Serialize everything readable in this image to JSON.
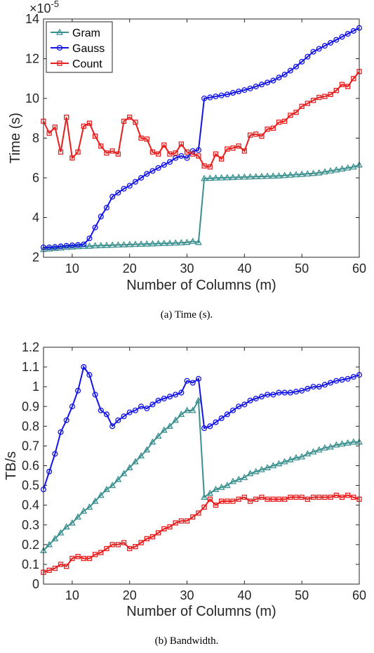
{
  "colors": {
    "gram": "#3a8f8f",
    "gauss": "#1414e6",
    "count": "#e61e1e",
    "axis": "#262626"
  },
  "chart_data": [
    {
      "type": "line",
      "caption": "(a) Time (s).",
      "xlabel": "Number of Columns (m)",
      "ylabel": "Time (s)",
      "exponent_label": "×10",
      "exponent_power": "-5",
      "xlim": [
        5,
        60
      ],
      "ylim": [
        2,
        14
      ],
      "xticks": [
        10,
        20,
        30,
        40,
        50,
        60
      ],
      "yticks": [
        2,
        4,
        6,
        8,
        10,
        12,
        14
      ],
      "legend": "top-left",
      "x": [
        5,
        6,
        7,
        8,
        9,
        10,
        11,
        12,
        13,
        14,
        15,
        16,
        17,
        18,
        19,
        20,
        21,
        22,
        23,
        24,
        25,
        26,
        27,
        28,
        29,
        30,
        31,
        32,
        33,
        34,
        35,
        36,
        37,
        38,
        39,
        40,
        41,
        42,
        43,
        44,
        45,
        46,
        47,
        48,
        49,
        50,
        51,
        52,
        53,
        54,
        55,
        56,
        57,
        58,
        59,
        60
      ],
      "series": [
        {
          "name": "Gram",
          "marker": "triangle",
          "color": "#3a8f8f",
          "values": [
            2.4,
            2.42,
            2.45,
            2.47,
            2.5,
            2.52,
            2.54,
            2.55,
            2.56,
            2.58,
            2.59,
            2.6,
            2.61,
            2.62,
            2.63,
            2.64,
            2.65,
            2.66,
            2.67,
            2.68,
            2.69,
            2.7,
            2.71,
            2.72,
            2.73,
            2.75,
            2.8,
            2.75,
            5.97,
            5.98,
            5.99,
            6.0,
            6.01,
            6.02,
            6.03,
            6.04,
            6.05,
            6.06,
            6.07,
            6.08,
            6.09,
            6.1,
            6.12,
            6.14,
            6.16,
            6.18,
            6.2,
            6.22,
            6.25,
            6.3,
            6.35,
            6.4,
            6.45,
            6.5,
            6.55,
            6.65
          ]
        },
        {
          "name": "Gauss",
          "marker": "circle",
          "color": "#1414e6",
          "values": [
            2.5,
            2.5,
            2.52,
            2.55,
            2.58,
            2.6,
            2.62,
            2.65,
            2.95,
            3.5,
            4.05,
            4.5,
            5.05,
            5.25,
            5.45,
            5.6,
            5.8,
            6.0,
            6.2,
            6.35,
            6.5,
            6.65,
            6.8,
            7.0,
            7.1,
            7.0,
            7.35,
            7.4,
            10.0,
            10.05,
            10.1,
            10.15,
            10.2,
            10.28,
            10.35,
            10.42,
            10.5,
            10.6,
            10.7,
            10.8,
            10.9,
            11.05,
            11.2,
            11.4,
            11.6,
            11.85,
            12.1,
            12.35,
            12.5,
            12.65,
            12.8,
            12.95,
            13.1,
            13.25,
            13.4,
            13.55
          ]
        },
        {
          "name": "Count",
          "marker": "square",
          "color": "#e61e1e",
          "values": [
            8.85,
            8.25,
            8.55,
            7.3,
            9.05,
            7.0,
            7.3,
            8.6,
            8.75,
            8.1,
            7.6,
            7.25,
            7.35,
            7.2,
            8.85,
            9.05,
            8.8,
            8.0,
            7.95,
            7.3,
            7.2,
            7.65,
            7.2,
            7.25,
            7.7,
            7.3,
            7.2,
            7.1,
            6.6,
            6.55,
            7.2,
            6.95,
            7.45,
            7.5,
            7.6,
            7.35,
            8.15,
            8.2,
            8.1,
            8.45,
            8.5,
            8.8,
            8.85,
            9.15,
            9.3,
            9.6,
            9.75,
            9.9,
            10.05,
            10.1,
            10.2,
            10.4,
            10.7,
            10.6,
            11.0,
            11.35
          ]
        }
      ]
    },
    {
      "type": "line",
      "caption": "(b) Bandwidth.",
      "xlabel": "Number of Columns (m)",
      "ylabel": "TB/s",
      "xlim": [
        5,
        60
      ],
      "ylim": [
        0,
        1.2
      ],
      "xticks": [
        10,
        20,
        30,
        40,
        50,
        60
      ],
      "yticks": [
        0,
        0.1,
        0.2,
        0.3,
        0.4,
        0.5,
        0.6,
        0.7,
        0.8,
        0.9,
        1,
        1.1,
        1.2
      ],
      "ytick_labels": [
        "0",
        "0.1",
        "0.2",
        "0.3",
        "0.4",
        "0.5",
        "0.6",
        "0.7",
        "0.8",
        "0.9",
        "1",
        "1.1",
        "1.2"
      ],
      "x": [
        5,
        6,
        7,
        8,
        9,
        10,
        11,
        12,
        13,
        14,
        15,
        16,
        17,
        18,
        19,
        20,
        21,
        22,
        23,
        24,
        25,
        26,
        27,
        28,
        29,
        30,
        31,
        32,
        33,
        34,
        35,
        36,
        37,
        38,
        39,
        40,
        41,
        42,
        43,
        44,
        45,
        46,
        47,
        48,
        49,
        50,
        51,
        52,
        53,
        54,
        55,
        56,
        57,
        58,
        59,
        60
      ],
      "series": [
        {
          "name": "Gram",
          "marker": "triangle",
          "color": "#3a8f8f",
          "values": [
            0.17,
            0.2,
            0.23,
            0.26,
            0.29,
            0.31,
            0.34,
            0.37,
            0.39,
            0.42,
            0.45,
            0.48,
            0.5,
            0.53,
            0.56,
            0.59,
            0.62,
            0.65,
            0.68,
            0.72,
            0.75,
            0.78,
            0.8,
            0.83,
            0.86,
            0.88,
            0.88,
            0.93,
            0.44,
            0.46,
            0.48,
            0.49,
            0.5,
            0.52,
            0.53,
            0.54,
            0.56,
            0.57,
            0.58,
            0.59,
            0.6,
            0.61,
            0.62,
            0.63,
            0.64,
            0.645,
            0.66,
            0.67,
            0.68,
            0.69,
            0.695,
            0.705,
            0.71,
            0.715,
            0.72,
            0.72
          ]
        },
        {
          "name": "Gauss",
          "marker": "circle",
          "color": "#1414e6",
          "values": [
            0.48,
            0.57,
            0.66,
            0.77,
            0.83,
            0.9,
            0.98,
            1.1,
            1.06,
            0.96,
            0.88,
            0.86,
            0.8,
            0.83,
            0.85,
            0.87,
            0.88,
            0.9,
            0.89,
            0.91,
            0.93,
            0.94,
            0.95,
            0.96,
            0.97,
            1.03,
            1.02,
            1.04,
            0.79,
            0.8,
            0.82,
            0.84,
            0.86,
            0.88,
            0.9,
            0.91,
            0.93,
            0.94,
            0.95,
            0.96,
            0.96,
            0.97,
            0.97,
            0.97,
            0.975,
            0.98,
            0.99,
            1.0,
            1.0,
            1.01,
            1.02,
            1.03,
            1.035,
            1.04,
            1.05,
            1.06
          ]
        },
        {
          "name": "Count",
          "marker": "square",
          "color": "#e61e1e",
          "values": [
            0.06,
            0.07,
            0.08,
            0.1,
            0.09,
            0.13,
            0.14,
            0.13,
            0.13,
            0.15,
            0.16,
            0.18,
            0.2,
            0.2,
            0.21,
            0.18,
            0.19,
            0.21,
            0.23,
            0.24,
            0.26,
            0.28,
            0.29,
            0.31,
            0.32,
            0.32,
            0.34,
            0.36,
            0.39,
            0.43,
            0.4,
            0.42,
            0.42,
            0.42,
            0.43,
            0.44,
            0.42,
            0.43,
            0.44,
            0.43,
            0.43,
            0.43,
            0.43,
            0.44,
            0.44,
            0.44,
            0.43,
            0.44,
            0.44,
            0.44,
            0.44,
            0.45,
            0.44,
            0.45,
            0.44,
            0.43
          ]
        }
      ]
    }
  ]
}
